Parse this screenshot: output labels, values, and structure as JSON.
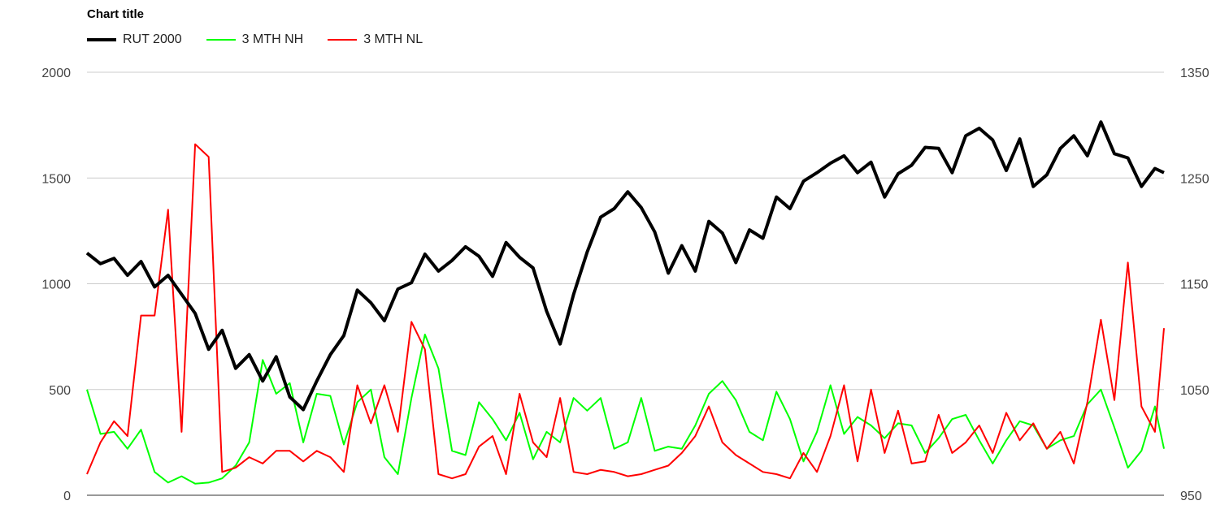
{
  "chart_data": {
    "type": "line",
    "title": "Chart title",
    "legend_position": "top-left",
    "grid": true,
    "n_points": 240,
    "y_left": {
      "min": 0,
      "max": 2000,
      "ticks": [
        "0",
        "500",
        "1000",
        "1500",
        "2000"
      ]
    },
    "y_right": {
      "min": 950,
      "max": 1350,
      "ticks": [
        "950",
        "1050",
        "1150",
        "1250",
        "1350"
      ]
    },
    "series": [
      {
        "name": "RUT 2000",
        "axis": "right",
        "color": "#000000",
        "width": 4,
        "x": [
          0,
          3,
          6,
          9,
          12,
          15,
          18,
          21,
          24,
          27,
          30,
          33,
          36,
          39,
          42,
          45,
          48,
          51,
          54,
          57,
          60,
          63,
          66,
          69,
          72,
          75,
          78,
          81,
          84,
          87,
          90,
          93,
          96,
          99,
          102,
          105,
          108,
          111,
          114,
          117,
          120,
          123,
          126,
          129,
          132,
          135,
          138,
          141,
          144,
          147,
          150,
          153,
          156,
          159,
          162,
          165,
          168,
          171,
          174,
          177,
          180,
          183,
          186,
          189,
          192,
          195,
          198,
          201,
          204,
          207,
          210,
          213,
          216,
          219,
          222,
          225,
          228,
          231,
          234,
          237,
          239
        ],
        "values": [
          1179,
          1169,
          1174,
          1158,
          1171,
          1147,
          1158,
          1140,
          1122,
          1088,
          1106,
          1070,
          1083,
          1058,
          1081,
          1043,
          1031,
          1058,
          1083,
          1101,
          1144,
          1132,
          1115,
          1145,
          1151,
          1178,
          1162,
          1172,
          1185,
          1176,
          1157,
          1189,
          1175,
          1165,
          1124,
          1093,
          1140,
          1180,
          1213,
          1221,
          1237,
          1222,
          1199,
          1160,
          1186,
          1162,
          1209,
          1198,
          1170,
          1201,
          1193,
          1232,
          1221,
          1247,
          1255,
          1264,
          1271,
          1255,
          1265,
          1232,
          1254,
          1262,
          1279,
          1278,
          1255,
          1290,
          1297,
          1286,
          1257,
          1287,
          1242,
          1253,
          1278,
          1290,
          1271,
          1303,
          1273,
          1269,
          1242,
          1259,
          1255
        ]
      },
      {
        "name": "3 MTH NH",
        "axis": "left",
        "color": "#00ff00",
        "width": 2,
        "x": [
          0,
          3,
          6,
          9,
          12,
          15,
          18,
          21,
          24,
          27,
          30,
          33,
          36,
          39,
          42,
          45,
          48,
          51,
          54,
          57,
          60,
          63,
          66,
          69,
          72,
          75,
          78,
          81,
          84,
          87,
          90,
          93,
          96,
          99,
          102,
          105,
          108,
          111,
          114,
          117,
          120,
          123,
          126,
          129,
          132,
          135,
          138,
          141,
          144,
          147,
          150,
          153,
          156,
          159,
          162,
          165,
          168,
          171,
          174,
          177,
          180,
          183,
          186,
          189,
          192,
          195,
          198,
          201,
          204,
          207,
          210,
          213,
          216,
          219,
          222,
          225,
          228,
          231,
          234,
          237,
          239
        ],
        "values": [
          500,
          290,
          300,
          220,
          310,
          110,
          60,
          90,
          55,
          60,
          80,
          140,
          250,
          640,
          480,
          530,
          250,
          480,
          470,
          240,
          440,
          500,
          180,
          100,
          460,
          760,
          600,
          210,
          190,
          440,
          360,
          260,
          390,
          170,
          300,
          250,
          460,
          400,
          460,
          220,
          250,
          460,
          210,
          230,
          220,
          330,
          480,
          540,
          450,
          300,
          260,
          490,
          360,
          160,
          300,
          520,
          290,
          370,
          330,
          270,
          340,
          330,
          200,
          270,
          360,
          380,
          260,
          150,
          260,
          350,
          330,
          220,
          260,
          280,
          430,
          500,
          320,
          130,
          210,
          420,
          220
        ]
      },
      {
        "name": "3 MTH NL",
        "axis": "left",
        "color": "#ff0000",
        "width": 2,
        "x": [
          0,
          3,
          6,
          9,
          12,
          15,
          18,
          21,
          24,
          27,
          30,
          33,
          36,
          39,
          42,
          45,
          48,
          51,
          54,
          57,
          60,
          63,
          66,
          69,
          72,
          75,
          78,
          81,
          84,
          87,
          90,
          93,
          96,
          99,
          102,
          105,
          108,
          111,
          114,
          117,
          120,
          123,
          126,
          129,
          132,
          135,
          138,
          141,
          144,
          147,
          150,
          153,
          156,
          159,
          162,
          165,
          168,
          171,
          174,
          177,
          180,
          183,
          186,
          189,
          192,
          195,
          198,
          201,
          204,
          207,
          210,
          213,
          216,
          219,
          222,
          225,
          228,
          231,
          234,
          237,
          239
        ],
        "values": [
          100,
          250,
          350,
          280,
          850,
          850,
          1350,
          300,
          1660,
          1600,
          110,
          130,
          180,
          150,
          210,
          210,
          160,
          210,
          180,
          110,
          520,
          340,
          520,
          300,
          820,
          690,
          100,
          80,
          100,
          230,
          280,
          100,
          480,
          250,
          180,
          460,
          110,
          100,
          120,
          110,
          90,
          100,
          120,
          140,
          200,
          280,
          420,
          250,
          190,
          150,
          110,
          100,
          80,
          200,
          110,
          280,
          520,
          160,
          500,
          200,
          400,
          150,
          160,
          380,
          200,
          250,
          330,
          200,
          390,
          260,
          340,
          220,
          300,
          150,
          440,
          830,
          450,
          1100,
          420,
          300,
          790
        ]
      }
    ]
  }
}
